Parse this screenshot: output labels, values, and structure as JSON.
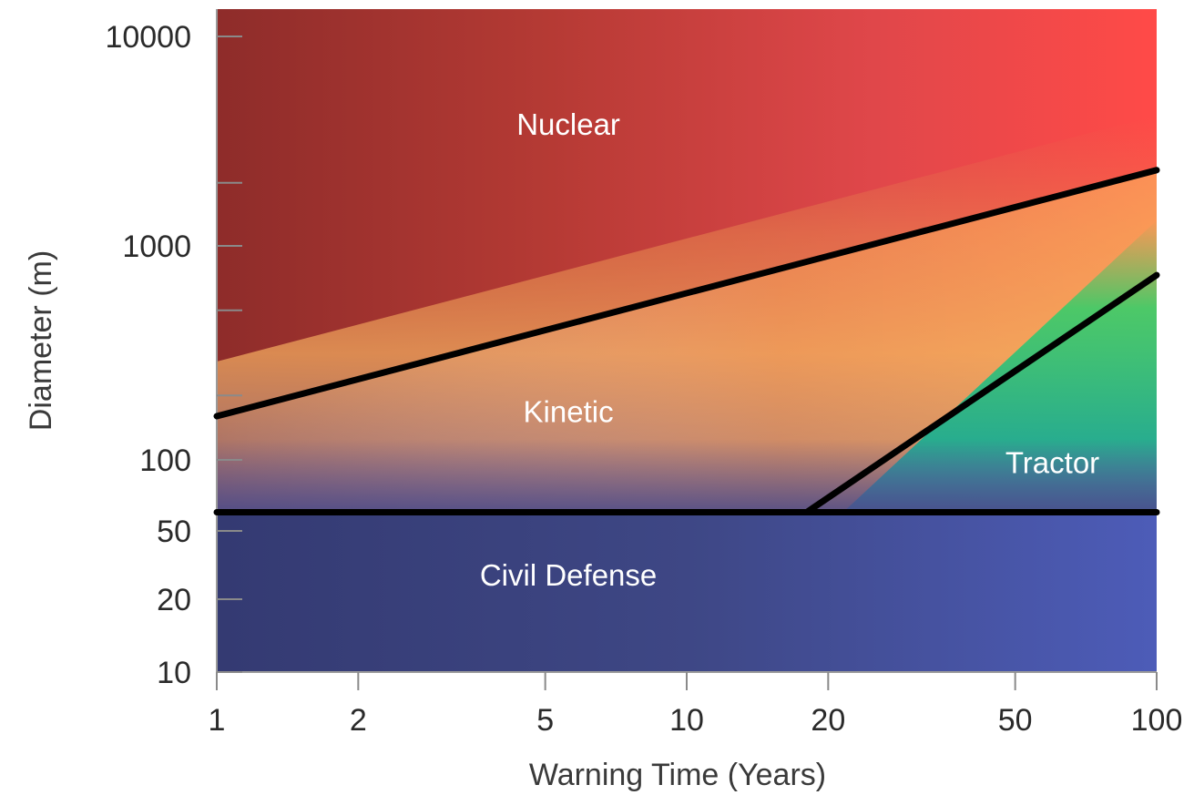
{
  "chart_data": {
    "type": "area",
    "xlabel": "Warning Time (Years)",
    "ylabel": "Diameter (m)",
    "x_scale": "log",
    "xlim": [
      1,
      100
    ],
    "x_ticks": [
      1,
      2,
      5,
      10,
      20,
      50,
      100
    ],
    "x_tick_labels": [
      "1",
      "2",
      "5",
      "10",
      "20",
      "50",
      "100"
    ],
    "y_ticks_major": [
      10,
      20,
      50,
      100,
      1000,
      10000
    ],
    "y_tick_labels": [
      "10",
      "20",
      "50",
      "100",
      "1000",
      "10000"
    ],
    "y_ticks_minor": [
      200,
      500,
      2000
    ],
    "boundaries": [
      {
        "x": [
          1,
          100
        ],
        "y": [
          160,
          2300
        ]
      },
      {
        "x": [
          1,
          100
        ],
        "y": [
          60,
          60
        ]
      },
      {
        "x": [
          18,
          100
        ],
        "y": [
          60,
          730
        ]
      }
    ],
    "regions": [
      {
        "label": "Nuclear",
        "x": 5.6,
        "y": 3400,
        "color": "#e84b45"
      },
      {
        "label": "Kinetic",
        "x": 5.6,
        "y": 150,
        "color": "#f5a35a"
      },
      {
        "label": "Tractor",
        "x": 60,
        "y": 88,
        "color": "#1fbf7a"
      },
      {
        "label": "Civil Defense",
        "x": 5.6,
        "y": 24,
        "color": "#4a5aa8"
      }
    ],
    "grid": false,
    "legend": "none"
  }
}
